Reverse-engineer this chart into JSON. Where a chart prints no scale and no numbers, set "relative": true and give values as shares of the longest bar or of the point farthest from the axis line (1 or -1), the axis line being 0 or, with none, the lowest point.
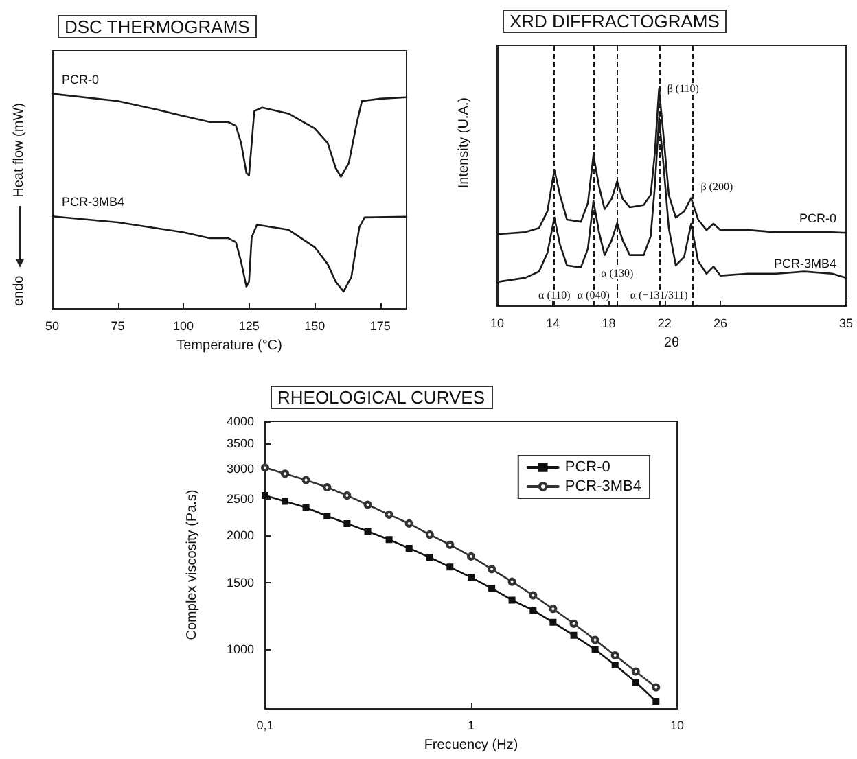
{
  "chart_data": [
    {
      "type": "line",
      "title": "DSC THERMOGRAMS",
      "xlabel": "Temperature (°C)",
      "ylabel": "Heat flow (mW)",
      "annotations": [
        "endo"
      ],
      "relative": true,
      "xlim": [
        50,
        185
      ],
      "xticks": [
        50,
        75,
        100,
        125,
        150,
        175
      ],
      "marker": "none",
      "line_style": "solid",
      "series": [
        {
          "name": "PCR-0",
          "color": "#1a1a1a",
          "x": [
            50,
            75,
            90,
            100,
            110,
            117,
            120,
            122,
            124,
            125,
            126,
            127,
            130,
            140,
            150,
            155,
            158,
            160,
            163,
            166,
            168,
            175,
            185
          ],
          "values": [
            1.0,
            0.966,
            0.926,
            0.897,
            0.869,
            0.869,
            0.851,
            0.77,
            0.632,
            0.621,
            0.77,
            0.92,
            0.936,
            0.908,
            0.839,
            0.77,
            0.655,
            0.614,
            0.678,
            0.862,
            0.966,
            0.977,
            0.984
          ]
        },
        {
          "name": "PCR-3MB4",
          "color": "#1a1a1a",
          "x": [
            50,
            75,
            100,
            110,
            117,
            120,
            122,
            124,
            125,
            126,
            128,
            140,
            150,
            155,
            158,
            161,
            164,
            167,
            169,
            185
          ],
          "values": [
            0.43,
            0.402,
            0.356,
            0.329,
            0.329,
            0.31,
            0.218,
            0.103,
            0.126,
            0.333,
            0.391,
            0.368,
            0.287,
            0.207,
            0.126,
            0.08,
            0.149,
            0.379,
            0.425,
            0.428
          ]
        }
      ]
    },
    {
      "type": "line",
      "title": "XRD DIFFRACTOGRAMS",
      "xlabel": "2θ",
      "ylabel": "Intensity (U.A.)",
      "relative": true,
      "xlim": [
        10,
        35
      ],
      "xticks": [
        10,
        14,
        18,
        22,
        26,
        35
      ],
      "marker": "none",
      "line_style": "solid",
      "annotations": [
        {
          "text": "β (110)",
          "x": 21.6,
          "y": 1.0
        },
        {
          "text": "β (200)",
          "x": 24.0,
          "y": 0.551
        }
      ],
      "ref_lines": [
        {
          "axis": "x",
          "value": 14.1,
          "label": "α (110)",
          "line_style": "dashed",
          "color": "#1a1a1a"
        },
        {
          "axis": "x",
          "value": 16.9,
          "label": "α (040)",
          "line_style": "dashed",
          "color": "#1a1a1a"
        },
        {
          "axis": "x",
          "value": 18.6,
          "label": "α (130)",
          "line_style": "dashed",
          "color": "#1a1a1a"
        },
        {
          "axis": "x",
          "value": 21.6,
          "label": "α (−131/311)",
          "line_style": "dashed",
          "color": "#1a1a1a"
        },
        {
          "axis": "x",
          "value": 24.0,
          "line_style": "dashed",
          "color": "#1a1a1a"
        }
      ],
      "series": [
        {
          "name": "PCR-0",
          "color": "#1a1a1a",
          "x": [
            10,
            12,
            13,
            13.6,
            14.1,
            14.5,
            15,
            16,
            16.5,
            16.9,
            17.3,
            17.7,
            18.2,
            18.6,
            19,
            19.5,
            20.5,
            21,
            21.3,
            21.6,
            21.9,
            22.3,
            22.8,
            23.4,
            23.9,
            24.4,
            25,
            25.5,
            26,
            28,
            30,
            32,
            34,
            35
          ],
          "values": [
            0.331,
            0.34,
            0.359,
            0.436,
            0.627,
            0.512,
            0.398,
            0.388,
            0.474,
            0.694,
            0.551,
            0.446,
            0.493,
            0.574,
            0.493,
            0.455,
            0.465,
            0.512,
            0.704,
            1.0,
            0.799,
            0.512,
            0.407,
            0.436,
            0.497,
            0.398,
            0.35,
            0.379,
            0.35,
            0.35,
            0.34,
            0.34,
            0.34,
            0.337
          ]
        },
        {
          "name": "PCR-3MB4",
          "color": "#1a1a1a",
          "x": [
            10,
            12,
            13,
            13.6,
            14.1,
            14.5,
            15,
            16,
            16.5,
            16.9,
            17.3,
            17.7,
            18.2,
            18.6,
            19,
            19.5,
            20.5,
            21,
            21.3,
            21.6,
            21.9,
            22.3,
            22.8,
            23.4,
            23.9,
            24.4,
            25,
            25.5,
            26,
            28,
            30,
            32,
            34,
            35
          ],
          "values": [
            0.111,
            0.13,
            0.159,
            0.245,
            0.407,
            0.283,
            0.187,
            0.178,
            0.264,
            0.484,
            0.34,
            0.235,
            0.302,
            0.382,
            0.302,
            0.235,
            0.235,
            0.321,
            0.551,
            0.866,
            0.665,
            0.359,
            0.187,
            0.226,
            0.379,
            0.207,
            0.149,
            0.182,
            0.14,
            0.149,
            0.149,
            0.159,
            0.149,
            0.13
          ]
        }
      ]
    },
    {
      "type": "line",
      "title": "RHEOLOGICAL CURVES",
      "xlabel": "Frecuency (Hz)",
      "ylabel": "Complex viscosity (Pa.s)",
      "log": "xy",
      "xlim": [
        0.1,
        10
      ],
      "xticks": [
        {
          "value": 0.1,
          "label": "0,1"
        },
        1,
        10
      ],
      "ylim": [
        700,
        4000
      ],
      "yticks": [
        1000,
        1500,
        2000,
        2500,
        3000,
        3500,
        4000
      ],
      "legend": "top right",
      "line_style": "solid",
      "x": [
        0.1,
        0.125,
        0.158,
        0.2,
        0.25,
        0.315,
        0.4,
        0.5,
        0.63,
        0.79,
        1,
        1.26,
        1.58,
        2,
        2.5,
        3.15,
        4,
        5,
        6.3,
        7.9
      ],
      "series": [
        {
          "name": "PCR-0",
          "color": "#111111",
          "marker": "square",
          "values": [
            2550,
            2460,
            2370,
            2250,
            2150,
            2050,
            1950,
            1850,
            1750,
            1650,
            1550,
            1450,
            1350,
            1270,
            1180,
            1090,
            1000,
            910,
            820,
            730
          ]
        },
        {
          "name": "PCR-3MB4",
          "color": "#333333",
          "marker": "circle",
          "values": [
            3020,
            2910,
            2800,
            2680,
            2550,
            2410,
            2270,
            2150,
            2010,
            1890,
            1760,
            1630,
            1510,
            1390,
            1280,
            1170,
            1060,
            965,
            875,
            795
          ]
        }
      ]
    }
  ]
}
